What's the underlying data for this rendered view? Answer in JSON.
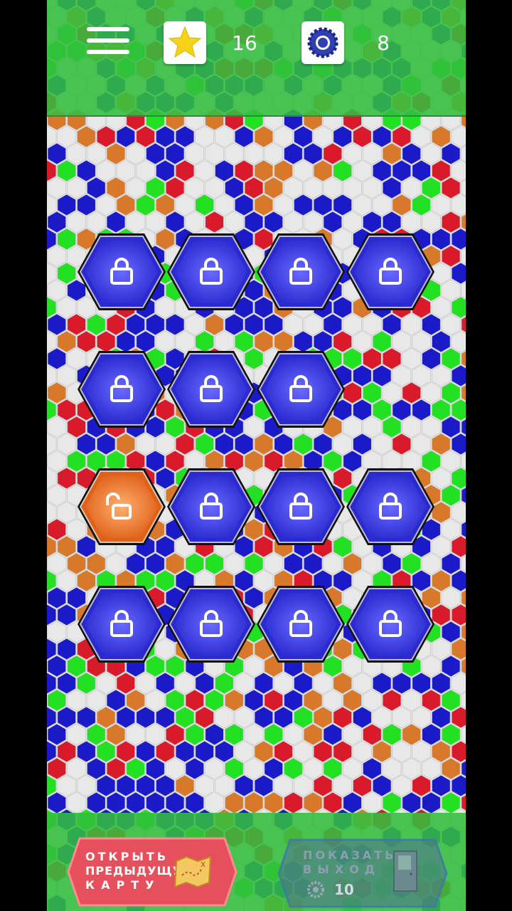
{
  "header": {
    "stars_count": "16",
    "gears_count": "8"
  },
  "levels": [
    {
      "state": "locked"
    },
    {
      "state": "locked"
    },
    {
      "state": "locked"
    },
    {
      "state": "locked"
    },
    {
      "state": "locked"
    },
    {
      "state": "locked"
    },
    {
      "state": "locked"
    },
    {
      "state": "unlocked"
    },
    {
      "state": "locked"
    },
    {
      "state": "locked"
    },
    {
      "state": "locked"
    },
    {
      "state": "locked"
    },
    {
      "state": "locked"
    },
    {
      "state": "locked"
    },
    {
      "state": "locked"
    }
  ],
  "footer": {
    "prev_map_line1": "ОТКРЫТЬ",
    "prev_map_line2": "ПРЕДЫДУЩУЮ",
    "prev_map_line3": "КАРТУ",
    "show_exit_line1": "ПОКАЗАТЬ",
    "show_exit_line2": "ВЫХОД",
    "show_exit_cost": "10"
  },
  "colors": {
    "locked_hex": "#2a2ad0",
    "unlocked_hex": "#e0621a",
    "bar_green": "#3cc04a",
    "prev_button": "#e8505a",
    "exit_button": "#5a7a9a"
  },
  "icons": [
    "menu-icon",
    "star-icon",
    "gear-icon",
    "lock-icon",
    "unlock-icon",
    "map-icon",
    "door-icon"
  ]
}
